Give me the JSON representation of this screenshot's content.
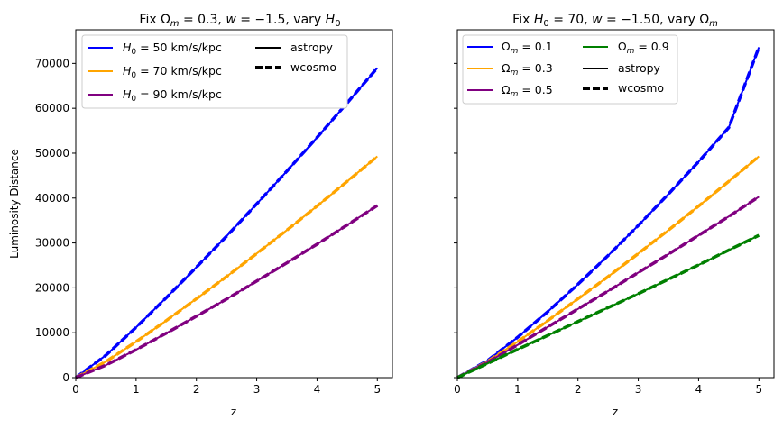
{
  "chart_data": [
    {
      "type": "line",
      "title": "Fix Ωm = 0.3, w = −1.5, vary H0",
      "xlabel": "z",
      "ylabel": "Luminosity Distance",
      "xlim": [
        0,
        5.25
      ],
      "ylim": [
        0,
        77500
      ],
      "xticks": [
        0,
        1,
        2,
        3,
        4,
        5
      ],
      "xtick_labels": [
        "0",
        "1",
        "2",
        "3",
        "4",
        "5"
      ],
      "yticks": [
        0,
        10000,
        20000,
        30000,
        40000,
        50000,
        60000,
        70000
      ],
      "ytick_labels": [
        "0",
        "10000",
        "20000",
        "30000",
        "40000",
        "50000",
        "60000",
        "70000"
      ],
      "grid": false,
      "legend_position": "upper-left",
      "x": [
        0,
        0.5,
        1,
        1.5,
        2,
        2.5,
        3,
        3.5,
        4,
        4.5,
        5
      ],
      "series": [
        {
          "name": "H0 = 50 km/s/kpc",
          "color": "#0000ff",
          "values": [
            0,
            5000,
            11200,
            17800,
            24600,
            31500,
            38700,
            46000,
            53500,
            61200,
            69000
          ]
        },
        {
          "name": "H0 = 70 km/s/kpc",
          "color": "#ffa500",
          "values": [
            0,
            3570,
            8000,
            12700,
            17570,
            22500,
            27640,
            32860,
            38210,
            43710,
            49290
          ]
        },
        {
          "name": "H0 = 90 km/s/kpc",
          "color": "#800080",
          "values": [
            0,
            2780,
            6220,
            9890,
            13670,
            17500,
            21500,
            25560,
            29720,
            34000,
            38330
          ]
        }
      ],
      "legend": {
        "col1": [
          "H₀ = 50 km/s/kpc",
          "H₀ = 70 km/s/kpc",
          "H₀ = 90 km/s/kpc"
        ],
        "col2": [
          "astropy",
          "wcosmo"
        ]
      },
      "title_parts": [
        "Fix Ω",
        "m",
        " = 0.3, ",
        "w",
        " = −1.5, vary ",
        "H",
        "0"
      ]
    },
    {
      "type": "line",
      "title": "Fix H0 = 70, w = −1.50, vary Ωm",
      "xlabel": "z",
      "ylabel": "",
      "xlim": [
        0,
        5.25
      ],
      "ylim": [
        0,
        77500
      ],
      "xticks": [
        0,
        1,
        2,
        3,
        4,
        5
      ],
      "xtick_labels": [
        "0",
        "1",
        "2",
        "3",
        "4",
        "5"
      ],
      "yticks": [
        0,
        10000,
        20000,
        30000,
        40000,
        50000,
        60000,
        70000
      ],
      "grid": false,
      "legend_position": "upper-left",
      "x": [
        0,
        0.5,
        1,
        1.5,
        2,
        2.5,
        3,
        3.5,
        4,
        4.5,
        5
      ],
      "series": [
        {
          "name": "Ωm = 0.1",
          "color": "#0000ff",
          "values": [
            0,
            3800,
            9000,
            14700,
            20800,
            27200,
            33900,
            40900,
            48100,
            55700,
            73600
          ]
        },
        {
          "name": "Ωm = 0.3",
          "color": "#ffa500",
          "values": [
            0,
            3570,
            8000,
            12700,
            17570,
            22500,
            27640,
            32860,
            38210,
            43710,
            49290
          ]
        },
        {
          "name": "Ωm = 0.5",
          "color": "#800080",
          "values": [
            0,
            3420,
            7300,
            11300,
            15300,
            19300,
            23400,
            27500,
            31700,
            35900,
            40300
          ]
        },
        {
          "name": "Ωm = 0.9",
          "color": "#008000",
          "values": [
            0,
            3150,
            6300,
            9400,
            12500,
            15600,
            18700,
            21900,
            25100,
            28400,
            31700
          ]
        }
      ],
      "legend": {
        "col1": [
          "Ωm = 0.1",
          "Ωm = 0.3",
          "Ωm = 0.5"
        ],
        "col2": [
          "Ωm = 0.9",
          "astropy",
          "wcosmo"
        ]
      },
      "title_parts": [
        "Fix ",
        "H",
        "0",
        " = 70, ",
        "w",
        " = −1.50, vary Ω",
        "m"
      ]
    }
  ]
}
